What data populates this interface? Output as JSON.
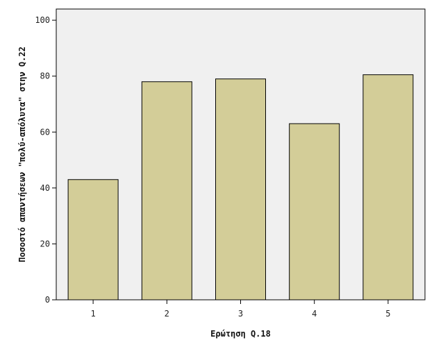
{
  "chart_data": {
    "type": "bar",
    "title": "",
    "xlabel": "Ερώτηση Q.18",
    "ylabel": "Ποσοστό απαντήσεων \"πολύ-απόλυτα\" στην Q.22",
    "categories": [
      "1",
      "2",
      "3",
      "4",
      "5"
    ],
    "values": [
      43,
      78,
      79,
      63,
      80.5
    ],
    "ylim": [
      0,
      104
    ],
    "yticks": [
      0,
      20,
      40,
      60,
      80,
      100
    ],
    "grid": false,
    "legend": "none",
    "colors": {
      "bar_fill": "#d3cd98",
      "bar_stroke": "#000000",
      "plot_background": "#f0f0f0",
      "page_background": "#ffffff"
    }
  }
}
